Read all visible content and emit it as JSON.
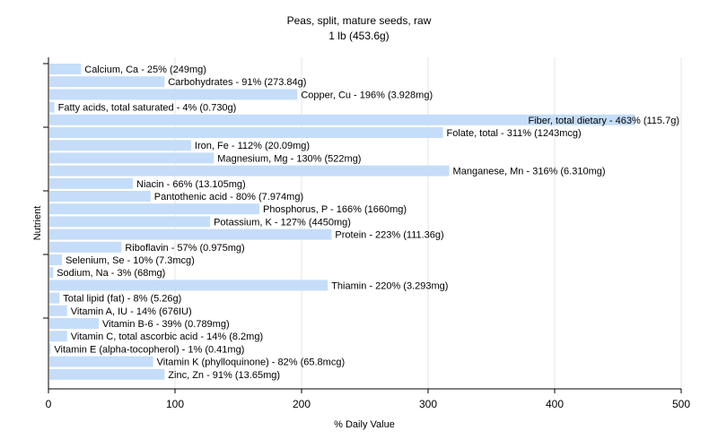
{
  "chart_data": {
    "type": "bar",
    "orientation": "horizontal",
    "title": "Peas, split, mature seeds, raw",
    "subtitle": "1 lb (453.6g)",
    "xlabel": "% Daily Value",
    "ylabel": "Nutrient",
    "xlim": [
      0,
      500
    ],
    "xticks": [
      "0",
      "100",
      "200",
      "300",
      "400",
      "500"
    ],
    "grid": "vertical",
    "bar_color": "#c5ddf9",
    "categories": [
      "Calcium, Ca - 25% (249mg)",
      "Carbohydrates - 91% (273.84g)",
      "Copper, Cu - 196% (3.928mg)",
      "Fatty acids, total saturated - 4% (0.730g)",
      "Fiber, total dietary - 463% (115.7g)",
      "Folate, total - 311% (1243mcg)",
      "Iron, Fe - 112% (20.09mg)",
      "Magnesium, Mg - 130% (522mg)",
      "Manganese, Mn - 316% (6.310mg)",
      "Niacin - 66% (13.105mg)",
      "Pantothenic acid - 80% (7.974mg)",
      "Phosphorus, P - 166% (1660mg)",
      "Potassium, K - 127% (4450mg)",
      "Protein - 223% (111.36g)",
      "Riboflavin - 57% (0.975mg)",
      "Selenium, Se - 10% (7.3mcg)",
      "Sodium, Na - 3% (68mg)",
      "Thiamin - 220% (3.293mg)",
      "Total lipid (fat) - 8% (5.26g)",
      "Vitamin A, IU - 14% (676IU)",
      "Vitamin B-6 - 39% (0.789mg)",
      "Vitamin C, total ascorbic acid - 14% (8.2mg)",
      "Vitamin E (alpha-tocopherol) - 1% (0.41mg)",
      "Vitamin K (phylloquinone) - 82% (65.8mcg)",
      "Zinc, Zn - 91% (13.65mg)"
    ],
    "values": [
      25,
      91,
      196,
      4,
      463,
      311,
      112,
      130,
      316,
      66,
      80,
      166,
      127,
      223,
      57,
      10,
      3,
      220,
      8,
      14,
      39,
      14,
      1,
      82,
      91
    ]
  }
}
